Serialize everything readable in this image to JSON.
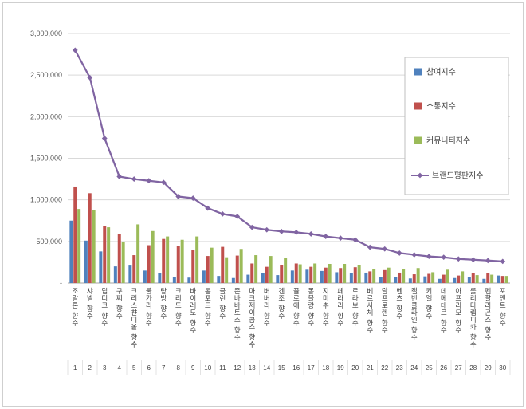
{
  "chart_data": {
    "type": "bar+line",
    "title": "",
    "categories": [
      "조말론 향수",
      "샤넬 향수",
      "딥디크 향수",
      "구찌 향수",
      "크리스챤디올 향수",
      "불가리 향수",
      "랑방 향수",
      "크리드 향수",
      "바이레도 향수",
      "톰포드 향수",
      "클린 향수",
      "존바바토스 향수",
      "마크제이콥스 향수",
      "버버리 향수",
      "겐조 향수",
      "끌로에 향수",
      "몽블랑 향수",
      "지미추 향수",
      "페라리 향수",
      "르라보 향수",
      "베르사체 향수",
      "랄프로렌 향수",
      "벤츠 향수",
      "캘빈클라인 향수",
      "키엘 향수",
      "데메테르 향수",
      "아프리모 향수",
      "롤리타렘피카 향수",
      "펜할리곤스 향수",
      "포맨트 향수"
    ],
    "rank_labels": [
      "1",
      "2",
      "3",
      "4",
      "5",
      "6",
      "7",
      "8",
      "9",
      "10",
      "11",
      "12",
      "13",
      "14",
      "15",
      "16",
      "17",
      "18",
      "19",
      "20",
      "21",
      "22",
      "23",
      "24",
      "25",
      "26",
      "27",
      "28",
      "29",
      "30"
    ],
    "series": [
      {
        "name": "참여지수",
        "type": "bar",
        "color": "#4F81BD",
        "values": [
          750000,
          510000,
          380000,
          200000,
          210000,
          150000,
          120000,
          75000,
          65000,
          150000,
          85000,
          60000,
          100000,
          120000,
          95000,
          150000,
          160000,
          145000,
          130000,
          115000,
          125000,
          70000,
          70000,
          55000,
          80000,
          50000,
          60000,
          70000,
          50000,
          90000
        ]
      },
      {
        "name": "소통지수",
        "type": "bar",
        "color": "#C0504D",
        "values": [
          1160000,
          1080000,
          690000,
          585000,
          335000,
          455000,
          530000,
          445000,
          395000,
          325000,
          435000,
          330000,
          235000,
          195000,
          220000,
          235000,
          195000,
          185000,
          180000,
          190000,
          140000,
          155000,
          125000,
          105000,
          110000,
          100000,
          90000,
          115000,
          120000,
          85000
        ]
      },
      {
        "name": "커뮤니티지수",
        "type": "bar",
        "color": "#9BBB59",
        "values": [
          890000,
          880000,
          670000,
          495000,
          705000,
          625000,
          560000,
          520000,
          560000,
          425000,
          310000,
          410000,
          335000,
          325000,
          305000,
          225000,
          235000,
          230000,
          230000,
          215000,
          165000,
          185000,
          165000,
          180000,
          130000,
          160000,
          140000,
          95000,
          100000,
          85000
        ]
      },
      {
        "name": "브랜드평판지수",
        "type": "line",
        "marker": "diamond",
        "color": "#8064A2",
        "values": [
          2800000,
          2470000,
          1740000,
          1280000,
          1250000,
          1230000,
          1210000,
          1040000,
          1020000,
          900000,
          830000,
          800000,
          670000,
          640000,
          620000,
          610000,
          590000,
          560000,
          540000,
          520000,
          430000,
          410000,
          360000,
          340000,
          320000,
          310000,
          290000,
          280000,
          270000,
          260000
        ]
      }
    ],
    "ylim": [
      0,
      3000000
    ],
    "ytick_interval": 500000,
    "ytick_labels": [
      "-",
      "500,000",
      "1,000,000",
      "1,500,000",
      "2,000,000",
      "2,500,000",
      "3,000,000"
    ],
    "grid": true,
    "legend_position": "top-right"
  },
  "colors": {
    "grid": "#d9d9d9",
    "axis": "#a6a6a6",
    "tick_text": "#595959",
    "label_text": "#404040",
    "legend_border": "#bfbfbf",
    "frame_border": "#cfcfcf",
    "background": "#ffffff"
  }
}
